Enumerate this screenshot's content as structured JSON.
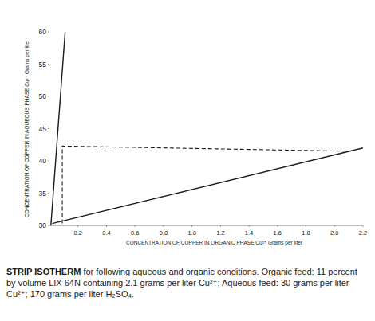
{
  "chart_data": {
    "type": "line",
    "title": "STRIP ISOTHERM",
    "subtitle": "for following aqueous and organic conditions. Organic feed: 11 percent by volume LIX 64N containing 2.1 grams per liter Cu²⁺; Aqueous feed: 30 grams per liter Cu²⁺; 170 grams per liter H₂SO₄.",
    "x_label": "CONCENTRATION OF COPPER IN ORGANIC PHASE  Cu²⁺ Grams per liter",
    "y_label": "CONCENTRATION OF COPPER IN AQUEOUS PHASE  Cu²⁺ Grams per liter",
    "xlim": [
      0,
      2.2
    ],
    "ylim": [
      30,
      60
    ],
    "xticks": [
      0.2,
      0.4,
      0.6,
      0.8,
      {
        "value": 1,
        "label": "1.0"
      },
      1.2,
      1.4,
      1.6,
      1.8,
      {
        "value": 2,
        "label": "2.0"
      },
      2.2
    ],
    "yticks": [
      30,
      35,
      40,
      45,
      50,
      55,
      60
    ],
    "grid": false,
    "series": [
      {
        "color": "#1a1a1a",
        "line_style": "solid",
        "x": [
          0.01,
          0.11
        ],
        "values": [
          30,
          60
        ]
      },
      {
        "color": "#1a1a1a",
        "line_style": "solid",
        "x": [
          0.02,
          2.2
        ],
        "values": [
          30.3,
          42
        ]
      },
      {
        "color": "#1a1a1a",
        "line_style": "dashed",
        "x": [
          0.09,
          0.09,
          2.1
        ],
        "values": [
          30.3,
          42.3,
          41.5
        ]
      }
    ]
  }
}
